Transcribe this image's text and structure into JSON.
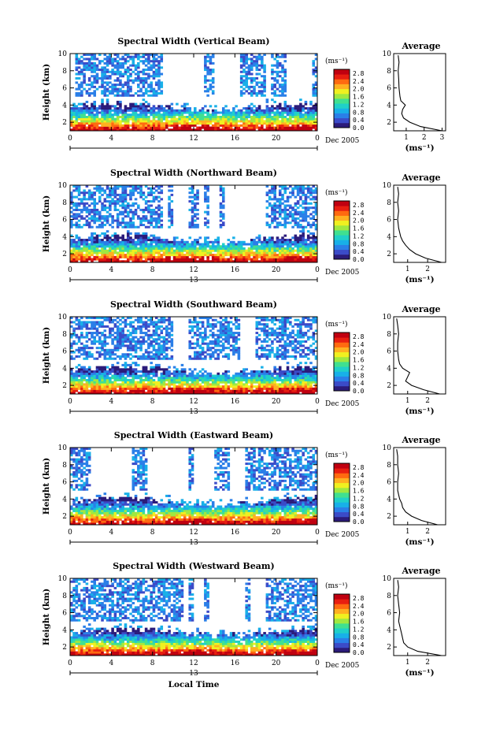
{
  "chart_data": [
    {
      "type": "heatmap",
      "title": "Spectral Width (Vertical Beam)",
      "ylabel": "Height (km)",
      "xticks": [
        "0",
        "4",
        "8",
        "12",
        "16",
        "20",
        "0"
      ],
      "yticks": [
        "2",
        "4",
        "6",
        "8",
        "10"
      ],
      "date_label": "Dec 2005",
      "day_label": "",
      "units": "(ms⁻¹)",
      "colorbar_ticks": [
        "2.8",
        "2.4",
        "2.0",
        "1.6",
        "1.2",
        "0.8",
        "0.4",
        "0.0"
      ],
      "xlim": [
        0,
        24
      ],
      "ylim": [
        1,
        10
      ],
      "clim": [
        0,
        3.0
      ],
      "average": {
        "title": "Average",
        "xticks": [
          "1",
          "2",
          "3"
        ],
        "xlim": [
          0.3,
          3.2
        ],
        "xlabel": "(ms⁻¹)",
        "height_km": [
          1.0,
          1.5,
          2.0,
          2.5,
          3.0,
          3.5,
          4.0,
          4.5,
          5.0,
          6.0,
          7.0,
          8.0,
          9.0,
          9.8
        ],
        "width_ms": [
          3.0,
          1.8,
          1.2,
          0.85,
          0.75,
          0.8,
          0.95,
          0.7,
          0.65,
          0.6,
          0.58,
          0.55,
          0.6,
          0.55
        ]
      }
    },
    {
      "type": "heatmap",
      "title": "Spectral Width (Northward Beam)",
      "ylabel": "Height (km)",
      "xticks": [
        "0",
        "4",
        "8",
        "12",
        "16",
        "20",
        "0"
      ],
      "yticks": [
        "2",
        "4",
        "6",
        "8",
        "10"
      ],
      "date_label": "Dec 2005",
      "day_label": "13",
      "units": "(ms⁻¹)",
      "colorbar_ticks": [
        "2.8",
        "2.4",
        "2.0",
        "1.6",
        "1.2",
        "0.8",
        "0.4",
        "0.0"
      ],
      "xlim": [
        0,
        24
      ],
      "ylim": [
        1,
        10
      ],
      "clim": [
        0,
        3.0
      ],
      "average": {
        "title": "Average",
        "xticks": [
          "1",
          "2"
        ],
        "xlim": [
          0.3,
          2.9
        ],
        "xlabel": "(ms⁻¹)",
        "height_km": [
          1.0,
          1.5,
          2.0,
          2.5,
          3.0,
          3.5,
          4.0,
          4.5,
          5.0,
          6.0,
          7.0,
          8.0,
          9.0,
          9.8
        ],
        "width_ms": [
          2.7,
          1.9,
          1.4,
          1.1,
          0.9,
          0.75,
          0.65,
          0.6,
          0.55,
          0.5,
          0.55,
          0.5,
          0.55,
          0.5
        ]
      }
    },
    {
      "type": "heatmap",
      "title": "Spectral Width (Southward Beam)",
      "ylabel": "Height (km)",
      "xticks": [
        "0",
        "4",
        "8",
        "12",
        "16",
        "20",
        "0"
      ],
      "yticks": [
        "2",
        "4",
        "6",
        "8",
        "10"
      ],
      "date_label": "Dec 2005",
      "day_label": "13",
      "units": "(ms⁻¹)",
      "colorbar_ticks": [
        "2.8",
        "2.4",
        "2.0",
        "1.6",
        "1.2",
        "0.8",
        "0.4",
        "0.0"
      ],
      "xlim": [
        0,
        24
      ],
      "ylim": [
        1,
        10
      ],
      "clim": [
        0,
        3.0
      ],
      "average": {
        "title": "Average",
        "xticks": [
          "1",
          "2"
        ],
        "xlim": [
          0.3,
          2.9
        ],
        "xlabel": "(ms⁻¹)",
        "height_km": [
          1.0,
          1.5,
          2.0,
          2.5,
          3.0,
          3.5,
          4.0,
          4.5,
          5.0,
          6.0,
          7.0,
          8.0,
          9.0,
          9.8
        ],
        "width_ms": [
          2.6,
          1.8,
          1.2,
          0.9,
          1.0,
          1.1,
          0.75,
          0.6,
          0.55,
          0.5,
          0.5,
          0.55,
          0.5,
          0.45
        ]
      }
    },
    {
      "type": "heatmap",
      "title": "Spectral Width (Eastward Beam)",
      "ylabel": "Height (km)",
      "xticks": [
        "0",
        "4",
        "8",
        "12",
        "16",
        "20",
        "0"
      ],
      "yticks": [
        "2",
        "4",
        "6",
        "8",
        "10"
      ],
      "date_label": "Dec 2005",
      "day_label": "13",
      "units": "(ms⁻¹)",
      "colorbar_ticks": [
        "2.8",
        "2.4",
        "2.0",
        "1.6",
        "1.2",
        "0.8",
        "0.4",
        "0.0"
      ],
      "xlim": [
        0,
        24
      ],
      "ylim": [
        1,
        10
      ],
      "clim": [
        0,
        3.0
      ],
      "average": {
        "title": "Average",
        "xticks": [
          "1",
          "2"
        ],
        "xlim": [
          0.3,
          2.9
        ],
        "xlabel": "(ms⁻¹)",
        "height_km": [
          1.0,
          1.5,
          2.0,
          2.5,
          3.0,
          3.5,
          4.0,
          4.5,
          5.0,
          6.0,
          7.0,
          8.0,
          9.0,
          9.8
        ],
        "width_ms": [
          2.5,
          1.7,
          1.2,
          0.9,
          0.75,
          0.7,
          0.6,
          0.55,
          0.5,
          0.5,
          0.55,
          0.5,
          0.5,
          0.45
        ]
      }
    },
    {
      "type": "heatmap",
      "title": "Spectral Width (Westward Beam)",
      "ylabel": "Height (km)",
      "xlabel": "Local Time",
      "xticks": [
        "0",
        "4",
        "8",
        "12",
        "16",
        "20",
        "0"
      ],
      "yticks": [
        "2",
        "4",
        "6",
        "8",
        "10"
      ],
      "date_label": "Dec 2005",
      "day_label": "13",
      "units": "(ms⁻¹)",
      "colorbar_ticks": [
        "2.8",
        "2.4",
        "2.0",
        "1.6",
        "1.2",
        "0.8",
        "0.4",
        "0.0"
      ],
      "xlim": [
        0,
        24
      ],
      "ylim": [
        1,
        10
      ],
      "clim": [
        0,
        3.0
      ],
      "average": {
        "title": "Average",
        "xticks": [
          "1",
          "2"
        ],
        "xlim": [
          0.3,
          2.9
        ],
        "xlabel": "(ms⁻¹)",
        "height_km": [
          1.0,
          1.5,
          2.0,
          2.5,
          3.0,
          3.5,
          4.0,
          4.5,
          5.0,
          6.0,
          7.0,
          8.0,
          9.0,
          9.8
        ],
        "width_ms": [
          2.7,
          1.5,
          1.0,
          0.8,
          0.75,
          0.7,
          0.65,
          0.6,
          0.55,
          0.6,
          0.55,
          0.5,
          0.55,
          0.5
        ]
      }
    }
  ],
  "colormap": [
    "#2b1b7a",
    "#3b4bc8",
    "#2a7fe8",
    "#18b0e8",
    "#20d0c8",
    "#40e090",
    "#a0e840",
    "#f0f020",
    "#ffb020",
    "#ff6a10",
    "#e81e10",
    "#c00010"
  ]
}
